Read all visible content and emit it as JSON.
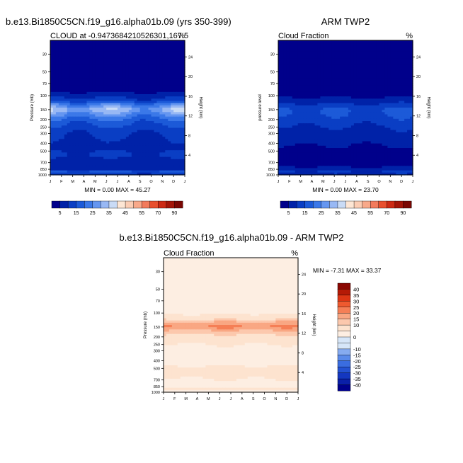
{
  "page": {
    "top_title": "b.e13.Bi1850C5CN.f19_g16.alpha01b.09 (yrs 350-399)",
    "bottom_title": "b.e13.Bi1850C5CN.f19_g16.alpha01b.09 - ARM TWP2"
  },
  "chart_data": [
    {
      "type": "heatmap",
      "id": "model",
      "title": "",
      "left_label": "CLOUD at -0.9473684210526301,167.5",
      "right_label": "%",
      "xlabel": "",
      "ylabel": "Pressure (mb)",
      "ylabel_right": "Height (km)",
      "months": [
        "J",
        "F",
        "M",
        "A",
        "M",
        "J",
        "J",
        "A",
        "S",
        "O",
        "N",
        "D",
        "J"
      ],
      "pressure_ticks": [
        30,
        50,
        70,
        100,
        150,
        200,
        250,
        300,
        400,
        500,
        700,
        850,
        1000
      ],
      "height_ticks": [
        24,
        20,
        16,
        12,
        8,
        4
      ],
      "ylim": [
        1000,
        20
      ],
      "levels": [
        5,
        10,
        15,
        20,
        25,
        30,
        35,
        40,
        45,
        50,
        55,
        60,
        70,
        80,
        90
      ],
      "colors": [
        "#00008b",
        "#0022a8",
        "#0a3ec4",
        "#1c5ad8",
        "#3b78e8",
        "#6596f0",
        "#98b8f4",
        "#c9dbf6",
        "#fde6d4",
        "#fbcdb4",
        "#f8a98a",
        "#f27b5c",
        "#e8502e",
        "#cc2a14",
        "#a31508",
        "#7a0703"
      ],
      "label_levels": [
        "5",
        "15",
        "25",
        "35",
        "45",
        "55",
        "70",
        "90"
      ],
      "min_label": "MIN =",
      "min": "0.00",
      "max_label": "MAX =",
      "max": "45.27",
      "profile": {
        "p": [
          20,
          30,
          50,
          70,
          85,
          100,
          115,
          130,
          150,
          170,
          200,
          230,
          260,
          300,
          350,
          400,
          450,
          500,
          560,
          620,
          700,
          780,
          850,
          920,
          1000
        ],
        "v": [
          1,
          1,
          1,
          2,
          4,
          9,
          15,
          28,
          38,
          30,
          22,
          18,
          15,
          12,
          11,
          10,
          9,
          11,
          13,
          10,
          9,
          8,
          10,
          20,
          10
        ]
      },
      "seasonal": {
        "t": [
          0,
          1,
          2,
          3,
          4,
          5,
          6,
          7,
          8,
          9,
          10,
          11,
          12
        ],
        "a": [
          1.0,
          0.92,
          0.72,
          0.72,
          0.9,
          0.98,
          0.97,
          0.86,
          0.68,
          0.7,
          0.85,
          1.0,
          1.0
        ]
      }
    },
    {
      "type": "heatmap",
      "id": "obs",
      "title": "ARM TWP2",
      "left_label": "Cloud Fraction",
      "right_label": "%",
      "xlabel": "",
      "ylabel": "pressure level",
      "ylabel_right": "Height (km)",
      "months": [
        "J",
        "F",
        "M",
        "A",
        "M",
        "J",
        "J",
        "A",
        "S",
        "O",
        "N",
        "D",
        "J"
      ],
      "pressure_ticks": [
        30,
        50,
        70,
        100,
        150,
        200,
        250,
        300,
        400,
        500,
        700,
        850,
        1000
      ],
      "height_ticks": [
        24,
        20,
        16,
        12,
        8,
        4
      ],
      "ylim": [
        1000,
        20
      ],
      "levels": [
        5,
        10,
        15,
        20,
        25,
        30,
        35,
        40,
        45,
        50,
        55,
        60,
        70,
        80,
        90
      ],
      "colors": [
        "#00008b",
        "#0022a8",
        "#0a3ec4",
        "#1c5ad8",
        "#3b78e8",
        "#6596f0",
        "#98b8f4",
        "#c9dbf6",
        "#fde6d4",
        "#fbcdb4",
        "#f8a98a",
        "#f27b5c",
        "#e8502e",
        "#cc2a14",
        "#a31508",
        "#7a0703"
      ],
      "label_levels": [
        "5",
        "15",
        "25",
        "35",
        "45",
        "55",
        "70",
        "90"
      ],
      "min_label": "MIN =",
      "min": "0.00",
      "max_label": "MAX =",
      "max": "23.70",
      "profile": {
        "p": [
          20,
          30,
          50,
          70,
          85,
          100,
          115,
          130,
          150,
          170,
          200,
          230,
          260,
          300,
          350,
          400,
          450,
          500,
          560,
          620,
          700,
          780,
          850,
          920,
          1000
        ],
        "v": [
          0,
          0,
          0,
          1,
          2,
          4,
          8,
          12,
          17,
          16,
          14,
          12,
          10,
          9,
          8,
          6,
          5,
          4,
          4,
          4,
          4,
          5,
          8,
          12,
          8
        ]
      },
      "seasonal": {
        "t": [
          0,
          1,
          2,
          3,
          4,
          5,
          6,
          7,
          8,
          9,
          10,
          11,
          12
        ],
        "a": [
          1.0,
          0.95,
          0.8,
          0.8,
          0.95,
          1.05,
          1.0,
          0.8,
          0.75,
          0.85,
          1.0,
          1.1,
          1.0
        ]
      }
    },
    {
      "type": "heatmap",
      "id": "diff",
      "title": "",
      "left_label": "Cloud Fraction",
      "right_label": "%",
      "xlabel": "",
      "ylabel": "Pressure (mb)",
      "ylabel_right": "Height (km)",
      "months": [
        "J",
        "F",
        "M",
        "A",
        "M",
        "J",
        "J",
        "A",
        "S",
        "O",
        "N",
        "D",
        "J"
      ],
      "pressure_ticks": [
        30,
        50,
        70,
        100,
        150,
        200,
        250,
        300,
        400,
        500,
        700,
        850,
        1000
      ],
      "height_ticks": [
        24,
        20,
        16,
        12,
        8,
        4
      ],
      "ylim": [
        1000,
        20
      ],
      "levels": [
        -40,
        -35,
        -30,
        -25,
        -20,
        -15,
        -10,
        -5,
        0,
        5,
        10,
        15,
        20,
        25,
        30,
        35,
        40
      ],
      "colors": [
        "#00008b",
        "#0a1fa8",
        "#1437c0",
        "#2452d2",
        "#3a6de0",
        "#5a8aea",
        "#86abf0",
        "#d6e6f8",
        "#d6e6f8",
        "#fdeee2",
        "#fde3cf",
        "#fcc8ad",
        "#f9a783",
        "#f57f56",
        "#ee5a2f",
        "#dc3614",
        "#b41a06",
        "#8a0702"
      ],
      "label_levels": [
        "40",
        "35",
        "30",
        "25",
        "20",
        "15",
        "10",
        "0",
        "-10",
        "-15",
        "-20",
        "-25",
        "-30",
        "-35",
        "-40"
      ],
      "min_label": "MIN =",
      "min": "-7.31",
      "max_label": "MAX =",
      "max": "33.37",
      "profile": {
        "p": [
          20,
          30,
          50,
          70,
          85,
          100,
          115,
          130,
          150,
          170,
          200,
          230,
          260,
          300,
          350,
          400,
          450,
          500,
          560,
          620,
          700,
          780,
          850,
          920,
          1000
        ],
        "v": [
          1,
          1,
          1,
          1,
          2,
          5,
          7,
          16,
          22,
          14,
          8,
          6,
          5,
          3,
          3,
          4,
          4,
          7,
          9,
          6,
          5,
          3,
          2,
          8,
          2
        ]
      },
      "seasonal": {
        "t": [
          0,
          1,
          2,
          3,
          4,
          5,
          6,
          7,
          8,
          9,
          10,
          11,
          12
        ],
        "a": [
          1.0,
          0.95,
          0.85,
          0.85,
          0.95,
          1.05,
          1.05,
          0.95,
          0.85,
          0.9,
          1.0,
          1.05,
          1.0
        ]
      }
    }
  ]
}
